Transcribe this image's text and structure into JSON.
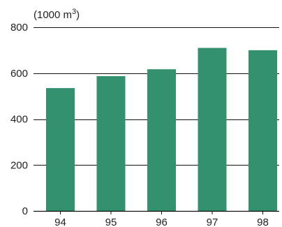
{
  "chart_data": {
    "type": "bar",
    "unit_label": "(1000 m",
    "unit_superscript": "3",
    "unit_close": ")",
    "categories": [
      "94",
      "95",
      "96",
      "97",
      "98"
    ],
    "values": [
      535,
      587,
      617,
      710,
      700
    ],
    "ylim": [
      0,
      800
    ],
    "y_ticks": [
      0,
      200,
      400,
      600,
      800
    ],
    "grid": true,
    "bar_color": "#33916f",
    "grid_color": "#111111",
    "text_color": "#222222"
  }
}
